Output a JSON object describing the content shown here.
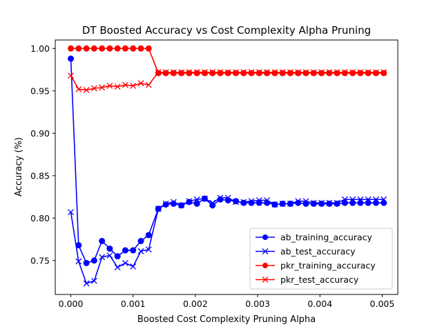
{
  "chart_data": {
    "type": "line",
    "title": "DT Boosted Accuracy vs Cost Complexity Alpha Pruning",
    "xlabel": "Boosted Cost Complexity Pruning Alpha",
    "ylabel": "Accuracy (%)",
    "xlim": [
      -0.00025,
      0.00525
    ],
    "ylim": [
      0.71,
      1.01
    ],
    "xticks": [
      0.0,
      0.001,
      0.002,
      0.003,
      0.004,
      0.005
    ],
    "xtick_labels": [
      "0.000",
      "0.001",
      "0.002",
      "0.003",
      "0.004",
      "0.005"
    ],
    "yticks": [
      0.75,
      0.8,
      0.85,
      0.9,
      0.95,
      1.0
    ],
    "ytick_labels": [
      "0.75",
      "0.80",
      "0.85",
      "0.90",
      "0.95",
      "1.00"
    ],
    "grid": false,
    "legend_position": "bottom-right",
    "x": [
      0.0,
      0.000125,
      0.00025,
      0.000375,
      0.0005,
      0.000625,
      0.00075,
      0.000875,
      0.001,
      0.001125,
      0.00125,
      0.001405,
      0.001525,
      0.00165,
      0.001775,
      0.0019,
      0.002025,
      0.00215,
      0.002275,
      0.0024,
      0.002525,
      0.00265,
      0.002775,
      0.0029,
      0.003025,
      0.00315,
      0.003275,
      0.0034,
      0.003525,
      0.00365,
      0.003775,
      0.0039,
      0.004025,
      0.00415,
      0.004275,
      0.0044,
      0.004525,
      0.00465,
      0.004775,
      0.0049,
      0.005025
    ],
    "series": [
      {
        "name": "ab_training_accuracy",
        "color": "#0000ff",
        "marker": "circle",
        "values": [
          0.988,
          0.768,
          0.747,
          0.75,
          0.773,
          0.764,
          0.755,
          0.762,
          0.762,
          0.773,
          0.78,
          0.811,
          0.816,
          0.817,
          0.815,
          0.819,
          0.817,
          0.823,
          0.815,
          0.822,
          0.821,
          0.82,
          0.818,
          0.818,
          0.818,
          0.818,
          0.816,
          0.817,
          0.817,
          0.818,
          0.817,
          0.817,
          0.817,
          0.817,
          0.817,
          0.818,
          0.818,
          0.818,
          0.818,
          0.818,
          0.818
        ]
      },
      {
        "name": "ab_test_accuracy",
        "color": "#0000ff",
        "marker": "x",
        "values": [
          0.807,
          0.749,
          0.723,
          0.726,
          0.754,
          0.756,
          0.742,
          0.747,
          0.743,
          0.761,
          0.763,
          0.811,
          0.817,
          0.819,
          0.815,
          0.82,
          0.822,
          0.823,
          0.818,
          0.824,
          0.824,
          0.819,
          0.819,
          0.82,
          0.821,
          0.821,
          0.816,
          0.817,
          0.817,
          0.82,
          0.82,
          0.818,
          0.818,
          0.818,
          0.818,
          0.822,
          0.822,
          0.822,
          0.822,
          0.822,
          0.822
        ]
      },
      {
        "name": "pkr_training_accuracy",
        "color": "#ff0000",
        "marker": "circle",
        "values": [
          1.0,
          1.0,
          1.0,
          1.0,
          1.0,
          1.0,
          1.0,
          1.0,
          1.0,
          1.0,
          1.0,
          0.971,
          0.971,
          0.971,
          0.971,
          0.971,
          0.971,
          0.971,
          0.971,
          0.971,
          0.971,
          0.971,
          0.971,
          0.971,
          0.971,
          0.971,
          0.971,
          0.971,
          0.971,
          0.971,
          0.971,
          0.971,
          0.971,
          0.971,
          0.971,
          0.971,
          0.971,
          0.971,
          0.971,
          0.971,
          0.971
        ]
      },
      {
        "name": "pkr_test_accuracy",
        "color": "#ff0000",
        "marker": "x",
        "values": [
          0.968,
          0.952,
          0.951,
          0.953,
          0.954,
          0.956,
          0.955,
          0.957,
          0.956,
          0.959,
          0.957,
          0.972,
          0.972,
          0.972,
          0.972,
          0.972,
          0.972,
          0.972,
          0.972,
          0.972,
          0.972,
          0.972,
          0.972,
          0.972,
          0.972,
          0.972,
          0.972,
          0.972,
          0.972,
          0.972,
          0.972,
          0.972,
          0.972,
          0.972,
          0.972,
          0.972,
          0.972,
          0.972,
          0.972,
          0.972,
          0.972
        ]
      }
    ]
  }
}
